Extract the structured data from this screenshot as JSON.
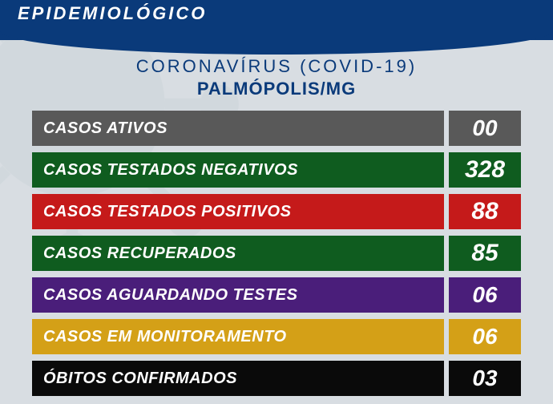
{
  "header_partial": "EPIDEMIOLÓGICO",
  "title": "CORONAVÍRUS (COVID-19)",
  "subtitle": "PALMÓPOLIS/MG",
  "header_bg_color": "#0a3a7a",
  "page_bg_color": "#d8dde2",
  "title_color": "#0a3a7a",
  "rows": [
    {
      "label": "CASOS ATIVOS",
      "value": "00",
      "label_bg": "#595959",
      "value_bg": "#595959",
      "value_fontsize": 28
    },
    {
      "label": "CASOS TESTADOS NEGATIVOS",
      "value": "328",
      "label_bg": "#0f5c1f",
      "value_bg": "#0f5c1f",
      "value_fontsize": 30
    },
    {
      "label": "CASOS TESTADOS POSITIVOS",
      "value": "88",
      "label_bg": "#c51a1a",
      "value_bg": "#c51a1a",
      "value_fontsize": 30
    },
    {
      "label": "CASOS RECUPERADOS",
      "value": "85",
      "label_bg": "#0f5c1f",
      "value_bg": "#0f5c1f",
      "value_fontsize": 30
    },
    {
      "label": "CASOS AGUARDANDO TESTES",
      "value": "06",
      "label_bg": "#4a1e7a",
      "value_bg": "#4a1e7a",
      "value_fontsize": 28
    },
    {
      "label": "CASOS EM MONITORAMENTO",
      "value": "06",
      "label_bg": "#d4a017",
      "value_bg": "#d4a017",
      "value_fontsize": 28
    },
    {
      "label": "ÓBITOS CONFIRMADOS",
      "value": "03",
      "label_bg": "#0a0a0a",
      "value_bg": "#0a0a0a",
      "value_fontsize": 28
    }
  ]
}
